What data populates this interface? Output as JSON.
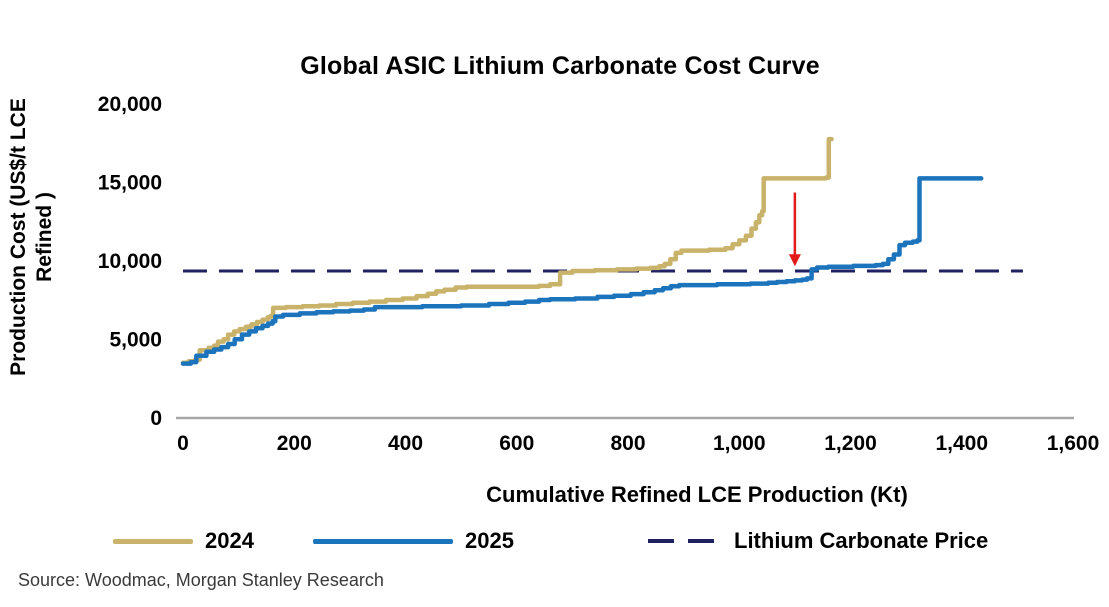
{
  "title": "Global ASIC Lithium Carbonate Cost Curve",
  "source_note": "Source: Woodmac, Morgan Stanley Research",
  "colors": {
    "series_2024": "#C9B36B",
    "series_2025": "#1B74BC",
    "price_line": "#1F2163",
    "arrow": "#E21A1A",
    "axis": "#A7A7A7",
    "text": "#000000"
  },
  "legend": {
    "items": [
      {
        "label": "2024",
        "color": "#C9B36B",
        "style": "solid"
      },
      {
        "label": "2025",
        "color": "#1B74BC",
        "style": "solid"
      },
      {
        "label": "Lithium Carbonate Price",
        "color": "#1F2163",
        "style": "dashed"
      }
    ]
  },
  "chart_data": {
    "type": "line",
    "title": "Global ASIC Lithium Carbonate Cost Curve",
    "xlabel": "Cumulative Refined LCE Production (Kt)",
    "ylabel": "Production Cost (US$/t LCE Refined )",
    "ylabel_lines": [
      "Production Cost (US$/t LCE",
      "Refined )"
    ],
    "xlim": [
      0,
      1600
    ],
    "ylim": [
      0,
      20000
    ],
    "grid": false,
    "legend_position": "bottom",
    "axis_color": "#A7A7A7",
    "x_ticks": [
      {
        "value": 0,
        "label": "0"
      },
      {
        "value": 200,
        "label": "200"
      },
      {
        "value": 400,
        "label": "400"
      },
      {
        "value": 600,
        "label": "600"
      },
      {
        "value": 800,
        "label": "800"
      },
      {
        "value": 1000,
        "label": "1,000"
      },
      {
        "value": 1200,
        "label": "1,200"
      },
      {
        "value": 1400,
        "label": "1,400"
      },
      {
        "value": 1600,
        "label": "1,600"
      }
    ],
    "y_ticks": [
      {
        "value": 0,
        "label": "0"
      },
      {
        "value": 5000,
        "label": "5,000"
      },
      {
        "value": 10000,
        "label": "10,000"
      },
      {
        "value": 15000,
        "label": "15,000"
      },
      {
        "value": 20000,
        "label": "20,000"
      }
    ],
    "reference_line": {
      "label": "Lithium Carbonate Price",
      "y": 9300,
      "color": "#1F2163",
      "dash": [
        24,
        12
      ],
      "x_start": 0,
      "x_end": 1510
    },
    "annotation_arrow": {
      "x": 1100,
      "y_from": 14300,
      "y_to": 9600,
      "color": "#E21A1A"
    },
    "series": [
      {
        "name": "2024",
        "color": "#C9B36B",
        "width": 4.5,
        "step": true,
        "points": [
          [
            0,
            3450
          ],
          [
            10,
            3550
          ],
          [
            22,
            3650
          ],
          [
            30,
            4250
          ],
          [
            46,
            4400
          ],
          [
            56,
            4550
          ],
          [
            63,
            4800
          ],
          [
            73,
            4950
          ],
          [
            81,
            5250
          ],
          [
            92,
            5450
          ],
          [
            102,
            5600
          ],
          [
            113,
            5750
          ],
          [
            123,
            5900
          ],
          [
            133,
            6050
          ],
          [
            143,
            6200
          ],
          [
            152,
            6350
          ],
          [
            158,
            6450
          ],
          [
            162,
            6950
          ],
          [
            185,
            7000
          ],
          [
            215,
            7050
          ],
          [
            245,
            7100
          ],
          [
            275,
            7200
          ],
          [
            305,
            7275
          ],
          [
            335,
            7350
          ],
          [
            365,
            7450
          ],
          [
            395,
            7550
          ],
          [
            420,
            7700
          ],
          [
            440,
            7850
          ],
          [
            455,
            8000
          ],
          [
            470,
            8100
          ],
          [
            490,
            8250
          ],
          [
            510,
            8300
          ],
          [
            640,
            8350
          ],
          [
            660,
            8450
          ],
          [
            678,
            9200
          ],
          [
            700,
            9300
          ],
          [
            740,
            9350
          ],
          [
            780,
            9400
          ],
          [
            815,
            9450
          ],
          [
            840,
            9500
          ],
          [
            856,
            9600
          ],
          [
            866,
            9750
          ],
          [
            876,
            10050
          ],
          [
            886,
            10450
          ],
          [
            896,
            10600
          ],
          [
            945,
            10650
          ],
          [
            975,
            10750
          ],
          [
            988,
            11000
          ],
          [
            1000,
            11250
          ],
          [
            1012,
            11550
          ],
          [
            1022,
            12000
          ],
          [
            1030,
            12400
          ],
          [
            1036,
            12850
          ],
          [
            1041,
            13100
          ],
          [
            1044,
            15200
          ],
          [
            1100,
            15200
          ],
          [
            1156,
            15250
          ],
          [
            1161,
            17700
          ],
          [
            1166,
            17700
          ]
        ]
      },
      {
        "name": "2025",
        "color": "#1B74BC",
        "width": 4.5,
        "step": true,
        "points": [
          [
            0,
            3400
          ],
          [
            14,
            3500
          ],
          [
            24,
            3900
          ],
          [
            42,
            4150
          ],
          [
            56,
            4300
          ],
          [
            69,
            4450
          ],
          [
            81,
            4650
          ],
          [
            93,
            4950
          ],
          [
            106,
            5250
          ],
          [
            119,
            5450
          ],
          [
            131,
            5650
          ],
          [
            143,
            5800
          ],
          [
            153,
            5950
          ],
          [
            161,
            6100
          ],
          [
            166,
            6400
          ],
          [
            180,
            6500
          ],
          [
            210,
            6600
          ],
          [
            240,
            6675
          ],
          [
            270,
            6725
          ],
          [
            300,
            6775
          ],
          [
            325,
            6850
          ],
          [
            345,
            7000
          ],
          [
            430,
            7050
          ],
          [
            500,
            7100
          ],
          [
            550,
            7200
          ],
          [
            585,
            7275
          ],
          [
            615,
            7350
          ],
          [
            640,
            7450
          ],
          [
            660,
            7500
          ],
          [
            705,
            7550
          ],
          [
            745,
            7650
          ],
          [
            775,
            7725
          ],
          [
            805,
            7825
          ],
          [
            828,
            7950
          ],
          [
            848,
            8075
          ],
          [
            863,
            8200
          ],
          [
            877,
            8325
          ],
          [
            892,
            8400
          ],
          [
            960,
            8450
          ],
          [
            1020,
            8500
          ],
          [
            1052,
            8550
          ],
          [
            1068,
            8600
          ],
          [
            1085,
            8650
          ],
          [
            1100,
            8700
          ],
          [
            1113,
            8750
          ],
          [
            1122,
            8825
          ],
          [
            1130,
            9400
          ],
          [
            1140,
            9525
          ],
          [
            1160,
            9575
          ],
          [
            1205,
            9625
          ],
          [
            1245,
            9675
          ],
          [
            1258,
            9750
          ],
          [
            1268,
            10050
          ],
          [
            1278,
            10350
          ],
          [
            1288,
            10950
          ],
          [
            1298,
            11100
          ],
          [
            1312,
            11175
          ],
          [
            1320,
            11250
          ],
          [
            1324,
            15200
          ],
          [
            1435,
            15200
          ]
        ]
      }
    ]
  }
}
